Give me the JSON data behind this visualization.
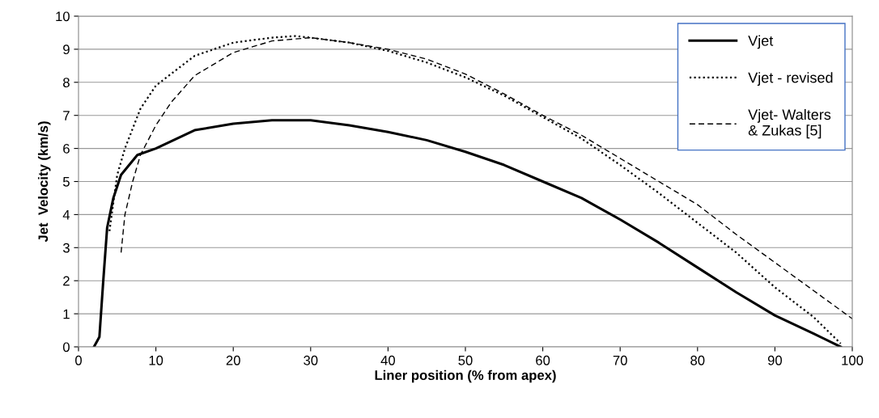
{
  "chart_data": {
    "type": "line",
    "xlabel": "Liner position (% from apex)",
    "ylabel": "Jet  Velocity (km/s)",
    "xlim": [
      0,
      100
    ],
    "ylim": [
      0,
      10
    ],
    "xticks": [
      0,
      10,
      20,
      30,
      40,
      50,
      60,
      70,
      80,
      90,
      100
    ],
    "yticks": [
      0,
      1,
      2,
      3,
      4,
      5,
      6,
      7,
      8,
      9,
      10
    ],
    "grid": "y",
    "legend": "top right",
    "marker": "none",
    "series": [
      {
        "name": "Vjet",
        "color": "#000000",
        "line_style": "solid",
        "x": [
          2,
          2.7,
          3.2,
          3.7,
          4.5,
          5.5,
          7.6,
          10,
          15,
          20,
          25,
          30,
          35,
          40,
          45,
          50,
          55,
          60,
          65,
          70,
          75,
          80,
          85,
          90,
          95,
          98.5
        ],
        "values": [
          0,
          0.3,
          2,
          3.6,
          4.5,
          5.2,
          5.8,
          6.0,
          6.55,
          6.75,
          6.85,
          6.85,
          6.7,
          6.5,
          6.25,
          5.9,
          5.5,
          5.0,
          4.5,
          3.85,
          3.15,
          2.4,
          1.65,
          0.95,
          0.4,
          0
        ]
      },
      {
        "name": "Vjet - revised",
        "color": "#000000",
        "line_style": "dotted",
        "x": [
          4,
          5,
          6,
          8,
          10,
          15,
          20,
          25,
          28,
          30,
          35,
          40,
          45,
          50,
          55,
          60,
          65,
          70,
          75,
          80,
          85,
          90,
          95,
          98.5
        ],
        "values": [
          3.5,
          5.2,
          6.0,
          7.2,
          7.9,
          8.8,
          9.2,
          9.35,
          9.4,
          9.35,
          9.2,
          8.95,
          8.6,
          8.15,
          7.6,
          6.95,
          6.3,
          5.5,
          4.65,
          3.75,
          2.85,
          1.8,
          0.9,
          0.1
        ]
      },
      {
        "name": "Vjet- Walters\n& Zukas [5]",
        "color": "#000000",
        "line_style": "dashed",
        "x": [
          5.5,
          6,
          7,
          8,
          10,
          12,
          15,
          20,
          25,
          30,
          35,
          40,
          45,
          50,
          55,
          60,
          65,
          70,
          75,
          80,
          85,
          90,
          95,
          100
        ],
        "values": [
          2.85,
          4.0,
          5.0,
          5.8,
          6.7,
          7.4,
          8.2,
          8.9,
          9.25,
          9.35,
          9.2,
          9.0,
          8.7,
          8.25,
          7.65,
          7.0,
          6.4,
          5.7,
          5.0,
          4.3,
          3.4,
          2.55,
          1.7,
          0.85
        ]
      }
    ]
  }
}
